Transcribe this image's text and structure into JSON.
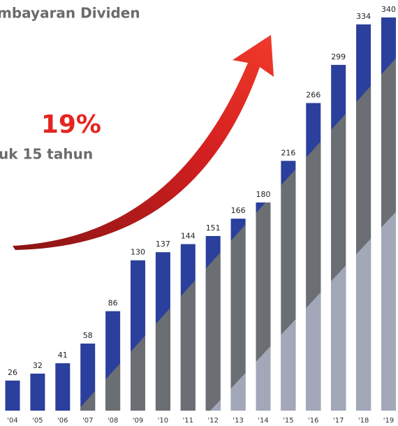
{
  "chart_data": {
    "type": "bar",
    "title": "mbayaran Dividen",
    "annotations": [
      "19%",
      "uk 15 tahun"
    ],
    "categories": [
      "'04",
      "'05",
      "'06",
      "'07",
      "'08",
      "'09",
      "'10",
      "'11",
      "'12",
      "'13",
      "'14",
      "'15",
      "'16",
      "'17",
      "'18",
      "'19"
    ],
    "values": [
      26,
      32,
      41,
      58,
      86,
      130,
      137,
      144,
      151,
      166,
      180,
      216,
      266,
      299,
      334,
      340
    ],
    "color": "#2b3f9c"
  }
}
